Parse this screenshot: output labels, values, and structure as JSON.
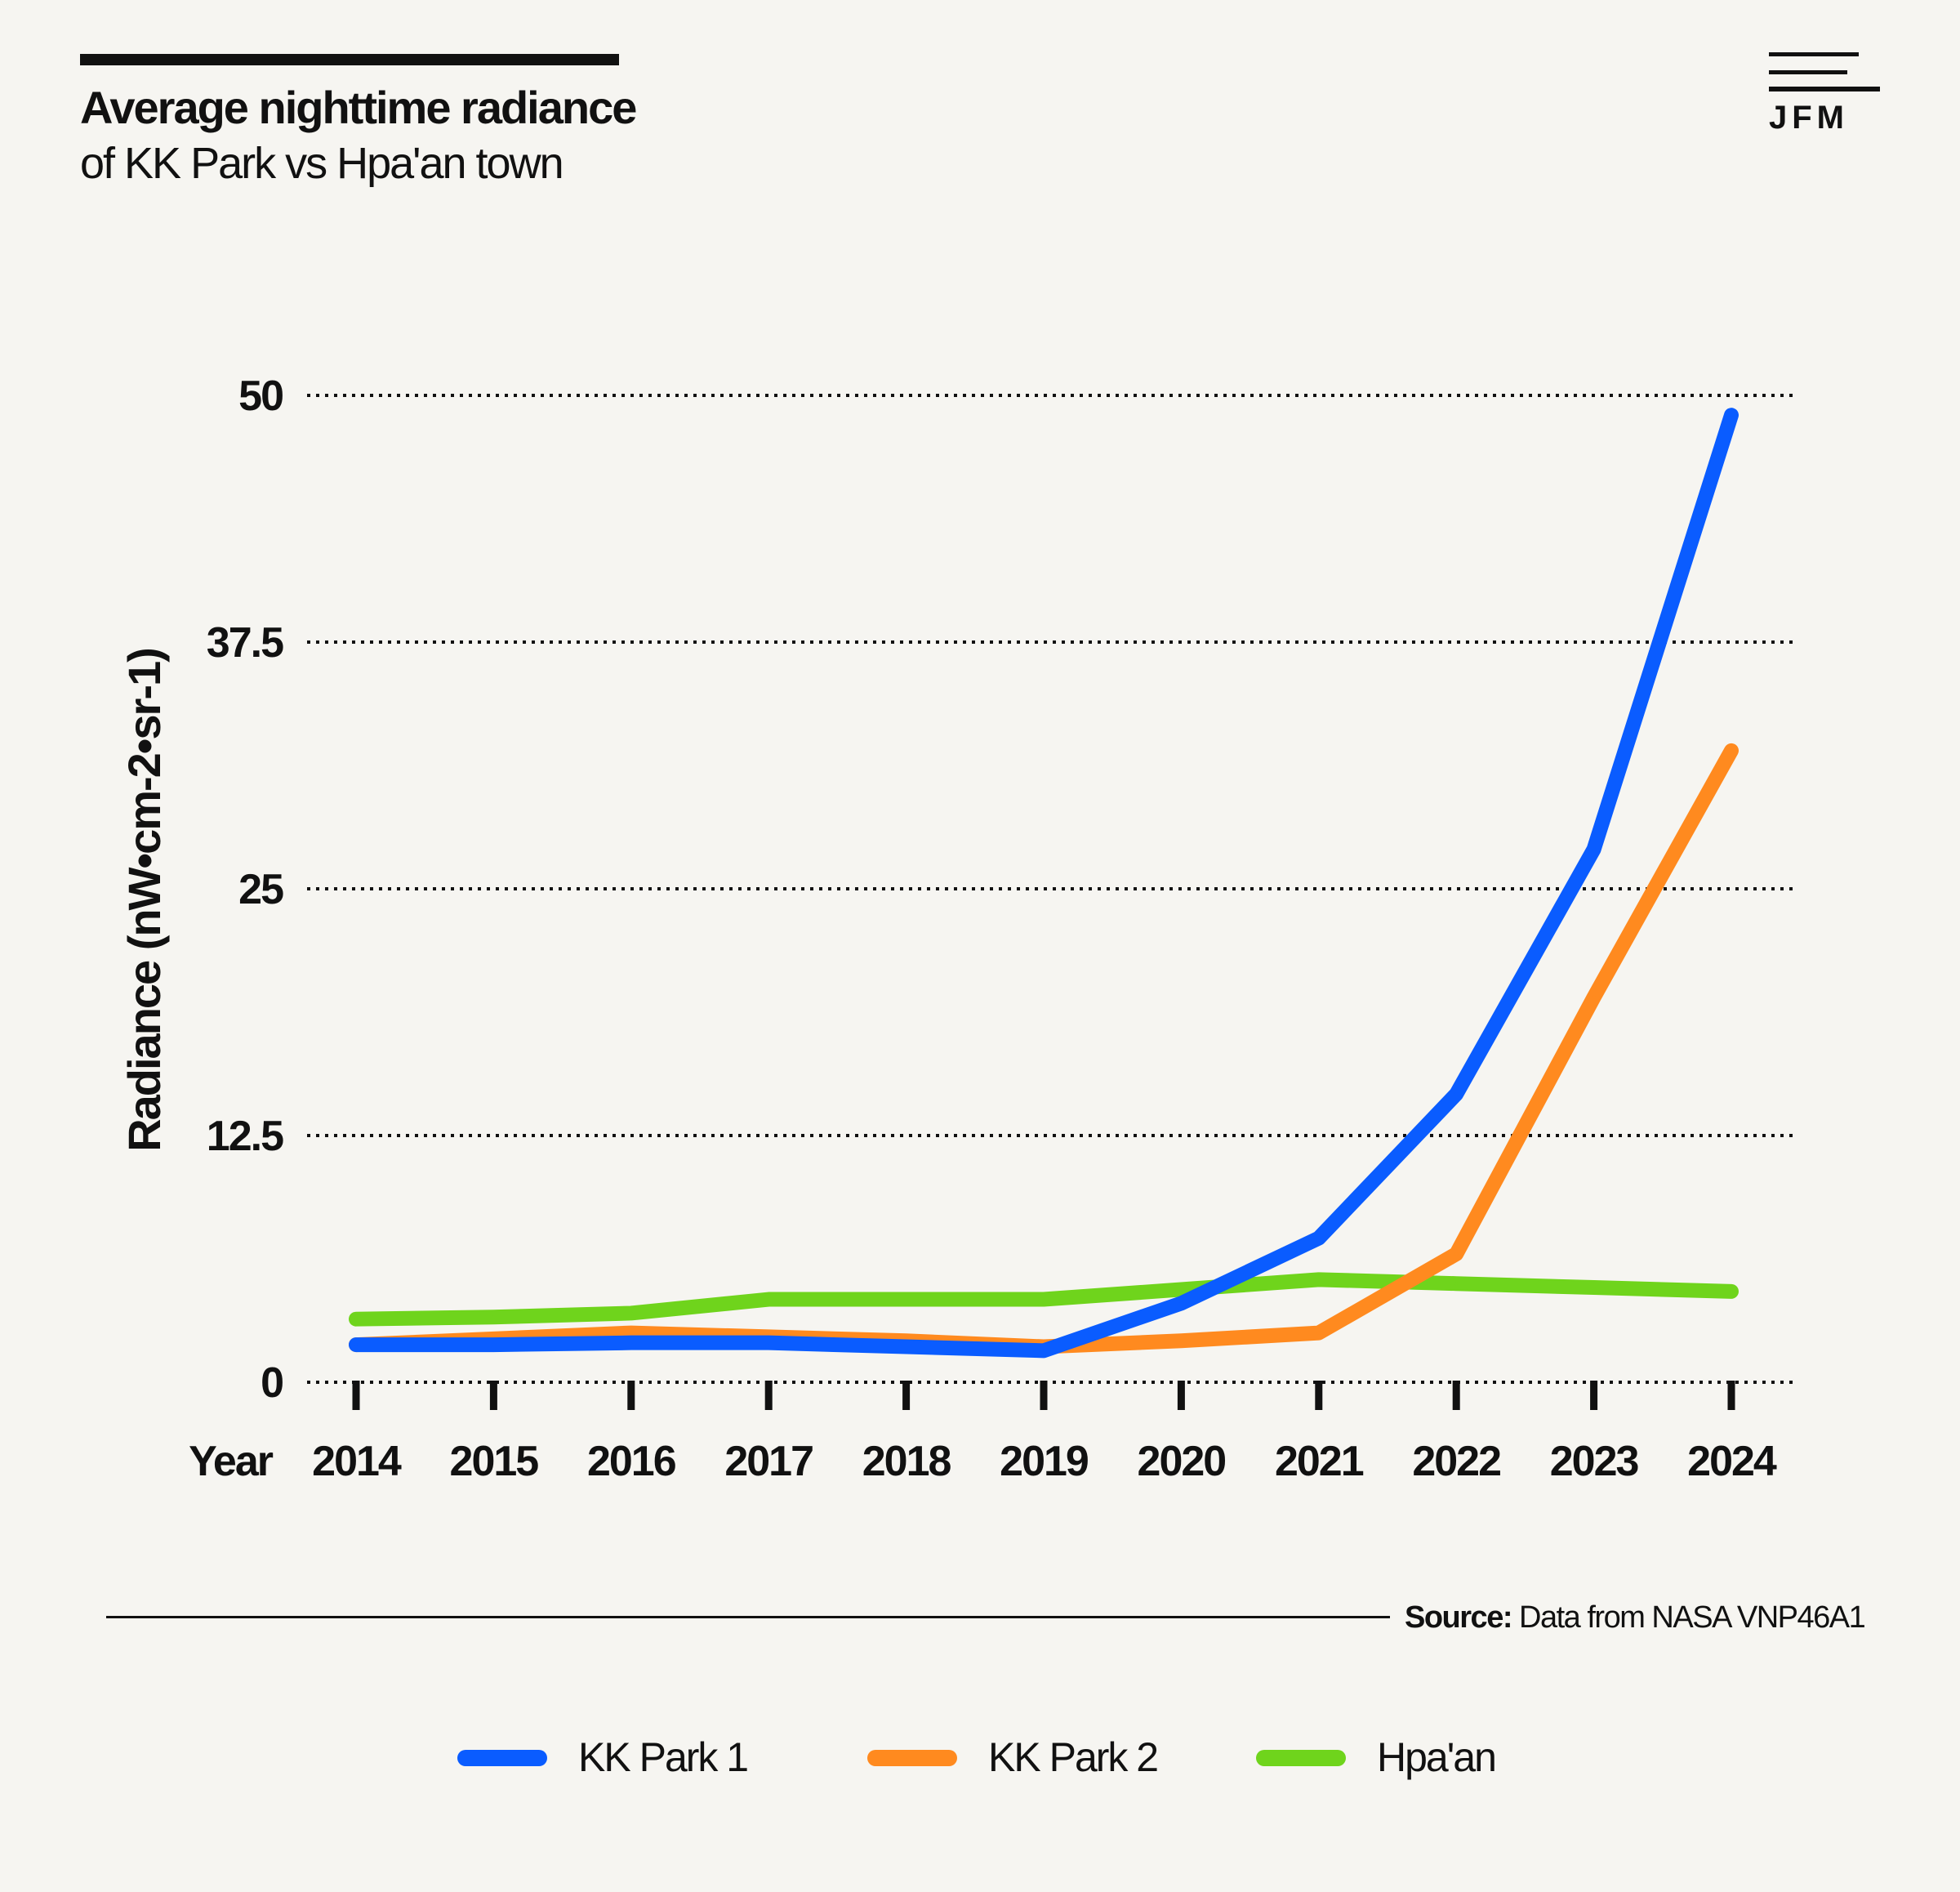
{
  "header": {
    "title": "Average nighttime radiance",
    "subtitle": "of KK Park vs Hpa'an town"
  },
  "logo": {
    "text": "JFM"
  },
  "source": {
    "label": "Source:",
    "text": "Data from NASA VNP46A1"
  },
  "colors": {
    "background": "#f6f5f1",
    "kk_park_1": "#0a5cff",
    "kk_park_2": "#ff8a1f",
    "hpaan": "#6fd41c"
  },
  "chart_data": {
    "type": "line",
    "title": "Average nighttime radiance",
    "subtitle": "of KK Park vs Hpa'an town",
    "xlabel": "Year",
    "ylabel": "Radiance (nW•cm-2•sr-1)",
    "x": [
      2014,
      2015,
      2016,
      2017,
      2018,
      2019,
      2020,
      2021,
      2022,
      2023,
      2024
    ],
    "x_tick_labels": [
      "2014",
      "2015",
      "2016",
      "2017",
      "2018",
      "2019",
      "2020",
      "2021",
      "2022",
      "2023",
      "2024"
    ],
    "y_ticks": [
      0,
      12.5,
      25,
      37.5,
      50
    ],
    "y_tick_labels": [
      "0",
      "12.5",
      "25",
      "37.5",
      "50"
    ],
    "ylim": [
      0,
      50
    ],
    "grid": true,
    "legend_position": "bottom",
    "series": [
      {
        "name": "KK Park 1",
        "color": "#0a5cff",
        "values": [
          1.9,
          1.9,
          2.0,
          2.0,
          1.8,
          1.6,
          4.0,
          7.3,
          14.6,
          27.0,
          49.0
        ]
      },
      {
        "name": "KK Park 2",
        "color": "#ff8a1f",
        "values": [
          1.9,
          2.2,
          2.5,
          2.3,
          2.1,
          1.8,
          2.1,
          2.5,
          6.5,
          19.5,
          32.0
        ]
      },
      {
        "name": "Hpa'an",
        "color": "#6fd41c",
        "values": [
          3.2,
          3.3,
          3.5,
          4.2,
          4.2,
          4.2,
          4.7,
          5.2,
          5.0,
          4.8,
          4.6
        ]
      }
    ]
  }
}
